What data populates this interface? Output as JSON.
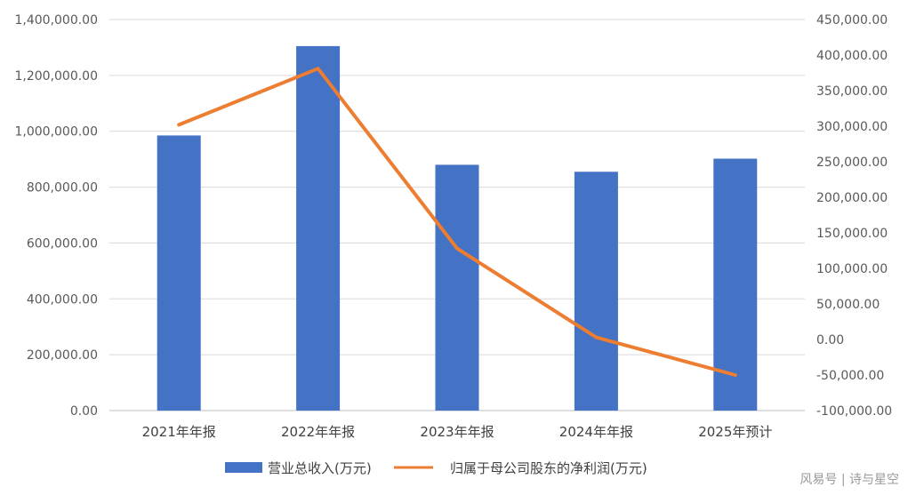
{
  "chart_data": {
    "type": "bar+line",
    "categories": [
      "2021年年报",
      "2022年年报",
      "2023年年报",
      "2024年年报",
      "2025年预计"
    ],
    "series": [
      {
        "name": "营业总收入(万元)",
        "type": "bar",
        "axis": "left",
        "values": [
          985000,
          1305000,
          880000,
          855000,
          902000
        ]
      },
      {
        "name": "归属于母公司股东的净利润(万元)",
        "type": "line",
        "axis": "right",
        "values": [
          302000,
          381000,
          128000,
          3000,
          -50000
        ]
      }
    ],
    "y_left": {
      "ylim": [
        0,
        1400000
      ],
      "ticks": [
        "0.00",
        "200,000.00",
        "400,000.00",
        "600,000.00",
        "800,000.00",
        "1,000,000.00",
        "1,200,000.00",
        "1,400,000.00"
      ]
    },
    "y_right": {
      "ylim": [
        -100000,
        450000
      ],
      "ticks": [
        "-100,000.00",
        "-50,000.00",
        "0.00",
        "50,000.00",
        "100,000.00",
        "150,000.00",
        "200,000.00",
        "250,000.00",
        "300,000.00",
        "350,000.00",
        "400,000.00",
        "450,000.00"
      ]
    },
    "legend": "bottom",
    "grid": true,
    "colors": {
      "bar": "#4472C4",
      "line": "#ED7D31",
      "grid": "#D9D9D9"
    }
  },
  "watermark": "风易号 | 诗与星空"
}
